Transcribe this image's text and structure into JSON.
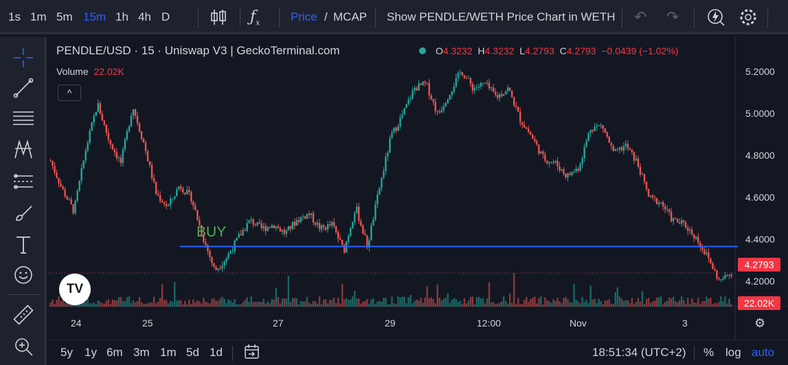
{
  "toolbar": {
    "intervals": [
      "1s",
      "1m",
      "5m",
      "15m",
      "1h",
      "4h",
      "D"
    ],
    "active_interval": "15m",
    "price_label": "Price",
    "slash": "/",
    "mcap_label": "MCAP",
    "show_chart_label": "Show PENDLE/WETH Price Chart in WETH"
  },
  "legend": {
    "title": "PENDLE/USD · 15 · Uniswap V3 | GeckoTerminal.com",
    "o_label": "O",
    "o": "4.3232",
    "h_label": "H",
    "h": "4.3232",
    "l_label": "L",
    "l": "4.2793",
    "c_label": "C",
    "c": "4.2793",
    "change": "−0.0439 (−1.02%)",
    "volume_label": "Volume",
    "volume": "22.02K",
    "collapse_glyph": "^"
  },
  "price_axis": [
    "5.2000",
    "5.0000",
    "4.8000",
    "4.6000",
    "4.4000",
    "4.2000"
  ],
  "last_price_tag": "4.2793",
  "last_volume_tag": "22.02K",
  "time_axis": [
    "24",
    "25",
    "27",
    "29",
    "12:00",
    "Nov",
    "3"
  ],
  "annotation": {
    "text": "BUY",
    "level": 4.4
  },
  "bottom": {
    "ranges": [
      "5y",
      "1y",
      "6m",
      "3m",
      "1m",
      "5d",
      "1d"
    ],
    "clock": "18:51:34 (UTC+2)",
    "percent": "%",
    "log": "log",
    "auto": "auto"
  },
  "colors": {
    "up": "#26a69a",
    "down": "#ef5350",
    "accent": "#2962ff",
    "buy_line": "#2962ff",
    "background": "#131722"
  },
  "chart_data": {
    "type": "candlestick",
    "symbol": "PENDLE/USD",
    "ylim": [
      4.18,
      5.24
    ],
    "path": [
      4.79,
      4.66,
      4.56,
      4.84,
      5.05,
      4.88,
      4.78,
      5.04,
      4.86,
      4.64,
      4.58,
      4.68,
      4.62,
      4.44,
      4.29,
      4.35,
      4.44,
      4.52,
      4.48,
      4.5,
      4.46,
      4.52,
      4.55,
      4.48,
      4.5,
      4.38,
      4.58,
      4.4,
      4.66,
      4.9,
      5.0,
      5.12,
      5.14,
      5.0,
      5.1,
      5.2,
      5.12,
      5.14,
      5.08,
      5.12,
      4.98,
      4.9,
      4.8,
      4.78,
      4.72,
      4.76,
      4.94,
      4.95,
      4.82,
      4.86,
      4.78,
      4.62,
      4.6,
      4.52,
      4.5,
      4.44,
      4.35,
      4.24,
      4.28
    ]
  }
}
